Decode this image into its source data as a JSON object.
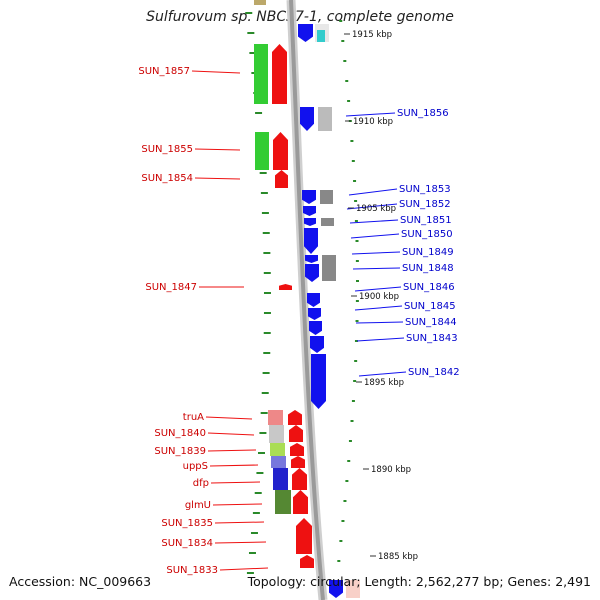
{
  "title": "Sulfurovum sp. NBC37-1, complete genome",
  "footer": {
    "accession_label": "Accession:",
    "accession": "NC_009663",
    "topology_label": "Topology:",
    "topology": "circular",
    "length_label": "Length:",
    "length": "2,562,277 bp",
    "genes_label": "Genes:",
    "genes": "2,491"
  },
  "colors": {
    "forward_gene": "#ee1111",
    "reverse_gene": "#1111ee",
    "backbone": "#9a9a9a",
    "gc_dots": "#2a8a2a",
    "cog_green": "#33cc33",
    "cog_gray": "#bbbbbb"
  },
  "scale_ticks": [
    "1915 kbp",
    "1910 kbp",
    "1905 kbp",
    "1900 kbp",
    "1895 kbp",
    "1890 kbp",
    "1885 kbp"
  ],
  "left_labels": [
    "SUN_1857",
    "SUN_1855",
    "SUN_1854",
    "SUN_1847",
    "truA",
    "SUN_1840",
    "SUN_1839",
    "uppS",
    "dfp",
    "glmU",
    "SUN_1835",
    "SUN_1834",
    "SUN_1833"
  ],
  "right_labels": [
    "SUN_1856",
    "SUN_1853",
    "SUN_1852",
    "SUN_1851",
    "SUN_1850",
    "SUN_1849",
    "SUN_1848",
    "SUN_1846",
    "SUN_1845",
    "SUN_1844",
    "SUN_1843",
    "SUN_1842"
  ]
}
